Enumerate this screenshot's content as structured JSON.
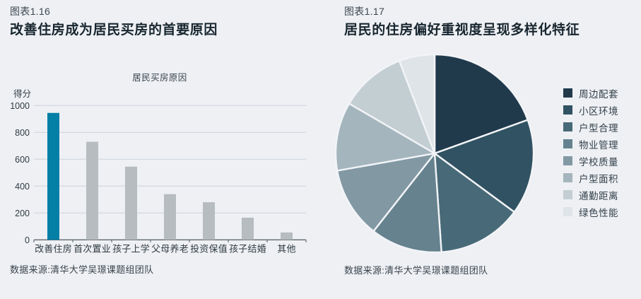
{
  "page": {
    "background_color": "#eef0f4"
  },
  "left_panel": {
    "tag": "图表1.16",
    "title": "改善住房成为居民买房的首要原因",
    "source": "数据来源:清华大学吴璟课题组团队"
  },
  "right_panel": {
    "tag": "图表1.17",
    "title": "居民的住房偏好重视度呈现多样化特征",
    "source": "数据来源:清华大学吴璟课题组团队"
  },
  "chart_data": [
    {
      "type": "bar",
      "title": "居民买房原因",
      "xlabel": "",
      "ylabel": "得分",
      "categories": [
        "改善住房",
        "首次置业",
        "孩子上学",
        "父母养老",
        "投资保值",
        "孩子结婚",
        "其他"
      ],
      "values": [
        945,
        730,
        545,
        340,
        280,
        165,
        55
      ],
      "ylim": [
        0,
        1000
      ],
      "ytick_step": 200,
      "grid": true,
      "highlight_index": 0,
      "highlight_color": "#047fa6",
      "default_color": "#b6bcbf",
      "gridline_color": "#ccd2d9",
      "axis_color": "#5f6a71"
    },
    {
      "type": "pie",
      "title": "",
      "legend_position": "right",
      "start_angle_deg": 0,
      "separator_color": "#f2f4f7",
      "slices": [
        {
          "label": "周边配套",
          "value": 19.5,
          "color": "#203a4c"
        },
        {
          "label": "小区环境",
          "value": 15.6,
          "color": "#315262"
        },
        {
          "label": "户型合理",
          "value": 13.8,
          "color": "#486a78"
        },
        {
          "label": "物业管理",
          "value": 11.7,
          "color": "#66828e"
        },
        {
          "label": "学校质量",
          "value": 11.6,
          "color": "#8299a4"
        },
        {
          "label": "户型面积",
          "value": 11.2,
          "color": "#a4b5bd"
        },
        {
          "label": "通勤距离",
          "value": 10.8,
          "color": "#c3ced3"
        },
        {
          "label": "绿色性能",
          "value": 5.8,
          "color": "#dee4e7"
        }
      ]
    }
  ]
}
